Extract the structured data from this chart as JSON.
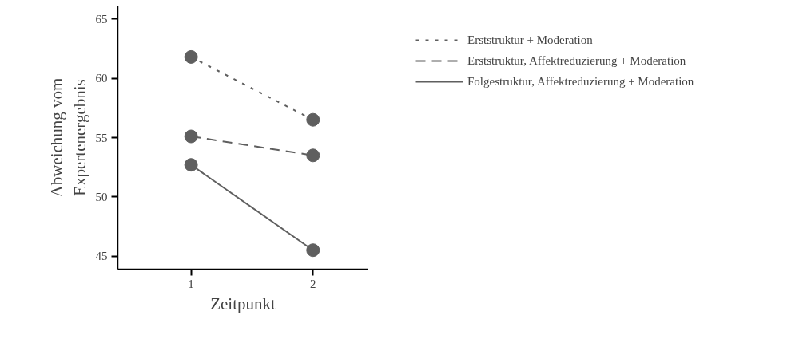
{
  "chart_data": {
    "type": "line",
    "xlabel": "Zeitpunkt",
    "ylabel": "Abweichung vom\nExpertenergebnis",
    "x": [
      1,
      2
    ],
    "xlim": [
      0.4,
      2.45
    ],
    "xticks": [
      1,
      2
    ],
    "ylim": [
      43.9,
      66.1
    ],
    "yticks": [
      45,
      50,
      55,
      60,
      65
    ],
    "grid": false,
    "legend": "top right",
    "marker": "circle",
    "series": [
      {
        "name": "Erststruktur + Moderation",
        "color": "#5f5f5f",
        "line_style": "dotted",
        "values": [
          61.8,
          56.5
        ]
      },
      {
        "name": "Erststruktur, Affektreduzierung + Moderation",
        "color": "#5f5f5f",
        "line_style": "dashed",
        "values": [
          55.1,
          53.5
        ]
      },
      {
        "name": "Folgestruktur, Affektreduzierung + Moderation",
        "color": "#5f5f5f",
        "line_style": "solid",
        "values": [
          52.7,
          45.5
        ]
      }
    ]
  }
}
